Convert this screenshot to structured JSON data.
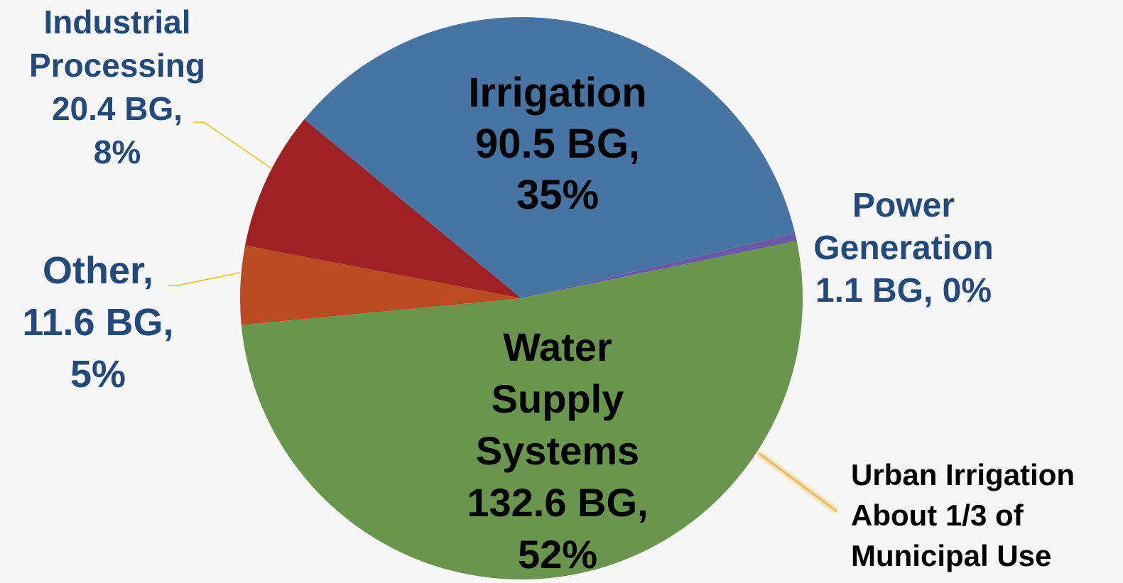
{
  "chart_data": {
    "type": "pie",
    "categories": [
      "Irrigation",
      "Power Generation",
      "Water Supply Systems",
      "Other,",
      "Industrial Processing"
    ],
    "values": [
      90.5,
      1.1,
      132.6,
      11.6,
      20.4
    ],
    "value_labels": [
      "90.5 BG, 35%",
      "1.1 BG, 0%",
      "132.6 BG, 52%",
      "11.6 BG, 5%",
      "20.4 BG, 8%"
    ],
    "colors": [
      "#4674a3",
      "#6a58a8",
      "#6a954c",
      "#b84b22",
      "#a02124"
    ],
    "annotation": "Urban Irrigation About 1/3 of Municipal Use"
  }
}
